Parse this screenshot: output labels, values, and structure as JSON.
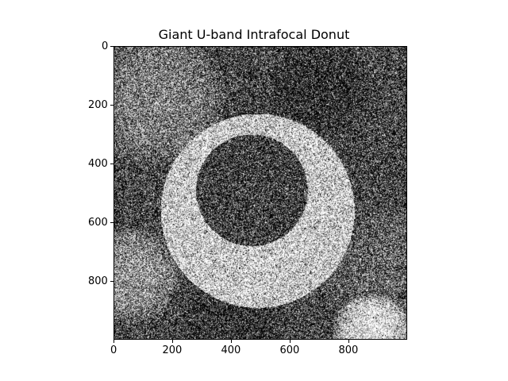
{
  "title": "Giant U-band Intrafocal Donut",
  "image": {
    "extent": [
      0,
      1000
    ],
    "colormap": "gray",
    "description_of_rendering": "noisy grayscale donut-shaped defocused star image"
  },
  "x_axis": {
    "ticks": [
      "0",
      "200",
      "400",
      "600",
      "800"
    ],
    "values": [
      0,
      200,
      400,
      600,
      800
    ]
  },
  "y_axis": {
    "ticks": [
      "0",
      "200",
      "400",
      "600",
      "800"
    ],
    "values": [
      0,
      200,
      400,
      600,
      800
    ]
  }
}
